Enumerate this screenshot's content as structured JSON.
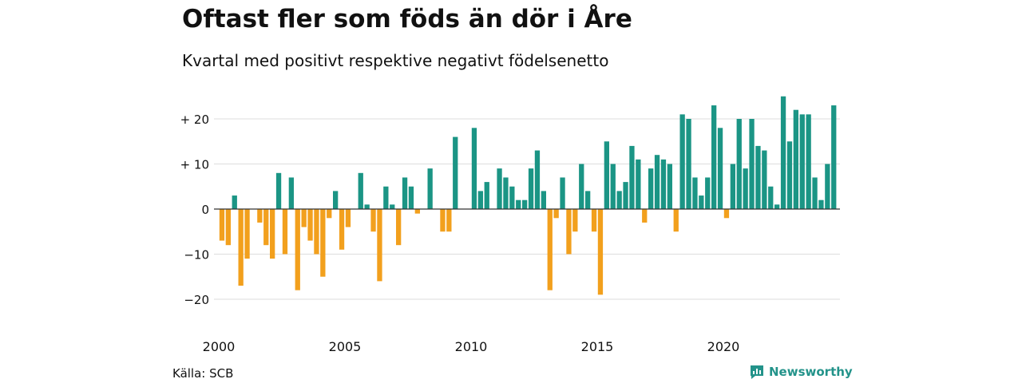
{
  "header": {
    "title": "Oftast fler som föds än dör i Åre",
    "subtitle": "Kvartal med positivt respektive negativt födelsenetto"
  },
  "footer": {
    "source": "Källa: SCB",
    "brand": "Newsworthy"
  },
  "colors": {
    "positive": "#1b9585",
    "negative": "#f2a01d",
    "grid": "#dddddd",
    "zero_line": "#333333",
    "brand": "#23938a"
  },
  "chart_data": {
    "type": "bar",
    "x_axis": {
      "start_year": 2000,
      "ticks": [
        "2000",
        "2005",
        "2010",
        "2015",
        "2020"
      ],
      "quarters_per_year": 4
    },
    "y_axis": {
      "ticks": [
        {
          "value": 20,
          "label": "+ 20"
        },
        {
          "value": 10,
          "label": "+ 10"
        },
        {
          "value": 0,
          "label": "0"
        },
        {
          "value": -10,
          "label": "−10"
        },
        {
          "value": -20,
          "label": "−20"
        }
      ],
      "ylim": [
        -25,
        25
      ]
    },
    "grid": true,
    "values": [
      -7,
      -8,
      3,
      -17,
      -11,
      0,
      -3,
      -8,
      -11,
      8,
      -10,
      7,
      -18,
      -4,
      -7,
      -10,
      -15,
      -2,
      4,
      -9,
      -4,
      0,
      8,
      1,
      -5,
      -16,
      5,
      1,
      -8,
      7,
      5,
      -1,
      0,
      9,
      0,
      -5,
      -5,
      16,
      0,
      0,
      18,
      4,
      6,
      0,
      9,
      7,
      5,
      2,
      2,
      9,
      13,
      4,
      -18,
      -2,
      7,
      -10,
      -5,
      10,
      4,
      -5,
      -19,
      15,
      10,
      4,
      6,
      14,
      11,
      -3,
      9,
      12,
      11,
      10,
      -5,
      21,
      20,
      7,
      3,
      7,
      23,
      18,
      -2,
      10,
      20,
      9,
      20,
      14,
      13,
      5,
      1,
      25,
      15,
      22,
      21,
      21,
      7,
      2,
      10,
      23
    ]
  }
}
